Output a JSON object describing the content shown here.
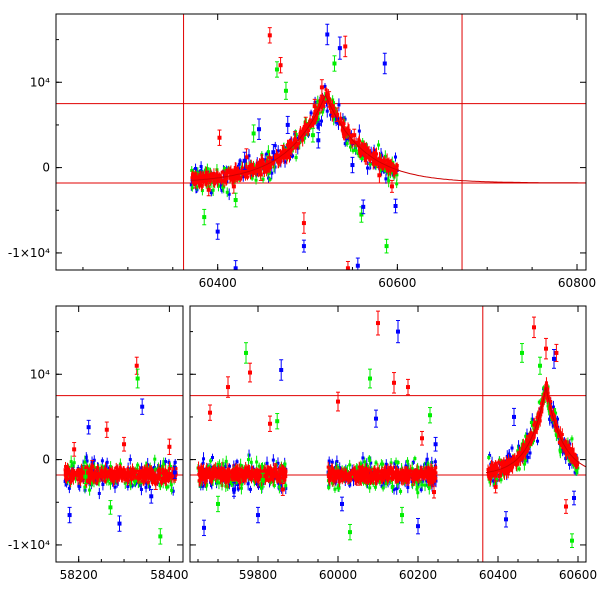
{
  "chart_data": [
    {
      "type": "scatter",
      "title": "",
      "xlabel": "",
      "ylabel": "",
      "xlim": [
        60220,
        60810
      ],
      "ylim": [
        -12000,
        18000
      ],
      "x_ticks": [
        60400,
        60600,
        60800
      ],
      "x_tick_labels": [
        "60400",
        "60600",
        "60800"
      ],
      "y_ticks": [
        -10000,
        0,
        10000
      ],
      "y_tick_labels": [
        "-1×10⁴",
        "0",
        "10⁴"
      ],
      "hlines": [
        7500,
        -1800
      ],
      "vlines": [
        60362,
        60672
      ],
      "grid": false,
      "colors": {
        "red": "#ff0000",
        "green": "#00ee00",
        "blue": "#0000ff",
        "model": "#cc0000"
      },
      "segments": [
        [
          60370,
          60600
        ]
      ],
      "model": {
        "baseline": -1800,
        "peak_x": 60520,
        "peak_y": 8500,
        "width": 42
      },
      "series": [
        {
          "color": "red",
          "points": [
            [
              60375,
              -1500,
              900
            ],
            [
              60390,
              -2600,
              700
            ],
            [
              60402,
              3500,
              900
            ],
            [
              60418,
              -2200,
              800
            ],
            [
              60432,
              1200,
              1000
            ],
            [
              60448,
              -800,
              700
            ],
            [
              60458,
              15500,
              900
            ],
            [
              60472,
              1800,
              800
            ],
            [
              60486,
              3200,
              1000
            ],
            [
              60498,
              5000,
              900
            ],
            [
              60508,
              7200,
              800
            ],
            [
              60516,
              9400,
              900
            ],
            [
              60524,
              8000,
              900
            ],
            [
              60533,
              6200,
              800
            ],
            [
              60542,
              14200,
              1200
            ],
            [
              60552,
              3800,
              700
            ],
            [
              60566,
              1200,
              800
            ],
            [
              60580,
              -900,
              900
            ],
            [
              60594,
              -2200,
              700
            ],
            [
              60496,
              -6500,
              1200
            ],
            [
              60545,
              -11800,
              800
            ],
            [
              60470,
              12000,
              900
            ]
          ]
        },
        {
          "color": "green",
          "points": [
            [
              60385,
              -5800,
              900
            ],
            [
              60420,
              -3800,
              800
            ],
            [
              60440,
              4000,
              1000
            ],
            [
              60466,
              11500,
              900
            ],
            [
              60476,
              9000,
              1000
            ],
            [
              60506,
              3800,
              800
            ],
            [
              60530,
              12200,
              900
            ],
            [
              60560,
              -5500,
              900
            ],
            [
              60588,
              -9200,
              800
            ]
          ]
        },
        {
          "color": "blue",
          "points": [
            [
              60400,
              -7500,
              900
            ],
            [
              60430,
              800,
              1000
            ],
            [
              60446,
              4500,
              1200
            ],
            [
              60462,
              1800,
              900
            ],
            [
              60478,
              5000,
              1000
            ],
            [
              60496,
              -9200,
              700
            ],
            [
              60512,
              3200,
              900
            ],
            [
              60522,
              15600,
              1200
            ],
            [
              60536,
              14000,
              1300
            ],
            [
              60550,
              300,
              900
            ],
            [
              60562,
              -4600,
              800
            ],
            [
              60586,
              12200,
              1200
            ],
            [
              60598,
              -4500,
              800
            ],
            [
              60420,
              -11800,
              900
            ],
            [
              60556,
              -11500,
              900
            ]
          ]
        }
      ]
    },
    {
      "type": "scatter",
      "title": "",
      "xlabel": "",
      "ylabel": "",
      "xlim": [
        58150,
        60620
      ],
      "ylim": [
        -12000,
        18000
      ],
      "x_ticks": [
        58200,
        58400,
        59800,
        60000,
        60200,
        60400,
        60600
      ],
      "x_tick_labels": [
        "58200",
        "58400",
        "59800",
        "60000",
        "60200",
        "60400",
        "60600"
      ],
      "y_ticks": [
        -10000,
        0,
        10000
      ],
      "y_tick_labels": [
        "-1×10⁴",
        "0",
        "10⁴"
      ],
      "hlines": [
        7500,
        -1800
      ],
      "vlines": [
        60362
      ],
      "grid": false,
      "colors": {
        "red": "#ff0000",
        "green": "#00ee00",
        "blue": "#0000ff",
        "model": "#cc0000"
      },
      "axis_breaks": [
        {
          "from": 58430,
          "to": 59630
        },
        {
          "from": 60590,
          "to": 60620
        }
      ],
      "panels": [
        {
          "xlim": [
            58150,
            58430
          ]
        },
        {
          "xlim": [
            59630,
            60620
          ]
        }
      ],
      "segments": [
        [
          58170,
          58415
        ],
        [
          59650,
          59870
        ],
        [
          59975,
          60245
        ],
        [
          60375,
          60600
        ]
      ],
      "model": {
        "baseline": -1800,
        "peak_x": 60520,
        "peak_y": 8500,
        "width": 42
      },
      "series": [
        {
          "color": "red",
          "points": [
            [
              58190,
              1200,
              800
            ],
            [
              58230,
              -800,
              700
            ],
            [
              58262,
              3500,
              900
            ],
            [
              58300,
              1800,
              800
            ],
            [
              58328,
              11000,
              1000
            ],
            [
              58370,
              -2800,
              700
            ],
            [
              58400,
              1500,
              900
            ],
            [
              59680,
              5500,
              900
            ],
            [
              59725,
              8500,
              1200
            ],
            [
              59780,
              10200,
              1100
            ],
            [
              59830,
              4200,
              900
            ],
            [
              59862,
              -3500,
              700
            ],
            [
              60000,
              6800,
              1100
            ],
            [
              60050,
              -2200,
              800
            ],
            [
              60100,
              16000,
              1400
            ],
            [
              60140,
              9000,
              1200
            ],
            [
              60175,
              8500,
              900
            ],
            [
              60210,
              2500,
              800
            ],
            [
              60240,
              -3800,
              700
            ],
            [
              60490,
              15500,
              1200
            ],
            [
              60520,
              13000,
              1200
            ],
            [
              60546,
              12500,
              1000
            ],
            [
              60570,
              -5500,
              800
            ],
            [
              60394,
              -3200,
              700
            ]
          ]
        },
        {
          "color": "green",
          "points": [
            [
              58215,
              -2000,
              800
            ],
            [
              58270,
              -5600,
              800
            ],
            [
              58330,
              9500,
              1100
            ],
            [
              58380,
              -9000,
              900
            ],
            [
              59700,
              -5200,
              900
            ],
            [
              59770,
              12500,
              1200
            ],
            [
              59812,
              -2400,
              800
            ],
            [
              59848,
              4500,
              900
            ],
            [
              60030,
              -8500,
              900
            ],
            [
              60080,
              9500,
              1100
            ],
            [
              60160,
              -6500,
              900
            ],
            [
              60230,
              5200,
              900
            ],
            [
              60460,
              12500,
              1100
            ],
            [
              60505,
              11000,
              1000
            ],
            [
              60585,
              -9500,
              800
            ]
          ]
        },
        {
          "color": "blue",
          "points": [
            [
              58180,
              -6500,
              900
            ],
            [
              58222,
              3800,
              800
            ],
            [
              58290,
              -7500,
              900
            ],
            [
              58340,
              6200,
              900
            ],
            [
              58360,
              -4300,
              800
            ],
            [
              58412,
              -1500,
              700
            ],
            [
              59665,
              -8000,
              900
            ],
            [
              59740,
              -3500,
              800
            ],
            [
              59800,
              -6500,
              900
            ],
            [
              59858,
              10500,
              1200
            ],
            [
              60010,
              -5200,
              800
            ],
            [
              60095,
              4800,
              1000
            ],
            [
              60150,
              15000,
              1300
            ],
            [
              60200,
              -7800,
              900
            ],
            [
              60244,
              1800,
              800
            ],
            [
              60420,
              -7000,
              900
            ],
            [
              60440,
              5000,
              1000
            ],
            [
              60540,
              11800,
              1100
            ],
            [
              60590,
              -4500,
              800
            ]
          ]
        }
      ]
    }
  ]
}
